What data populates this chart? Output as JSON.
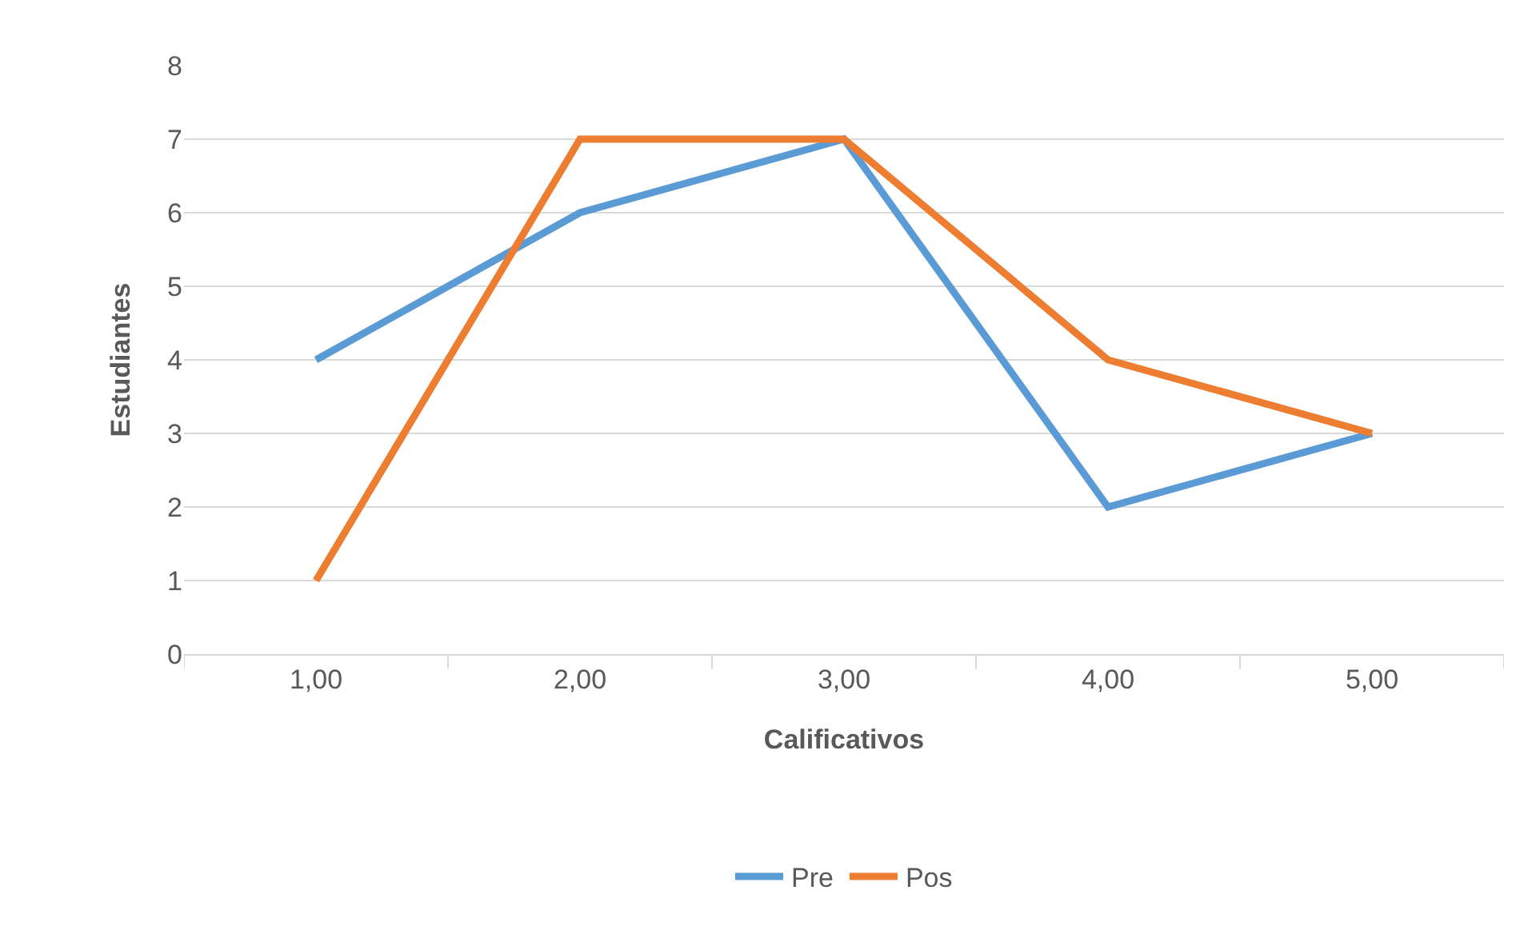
{
  "chart_data": {
    "type": "line",
    "xlabel": "Calificativos",
    "ylabel": "Estudiantes",
    "categories": [
      "1,00",
      "2,00",
      "3,00",
      "4,00",
      "5,00"
    ],
    "series": [
      {
        "name": "Pre",
        "color": "#5b9bd5",
        "values": [
          4,
          6,
          7,
          2,
          3
        ]
      },
      {
        "name": "Pos",
        "color": "#ed7d31",
        "values": [
          1,
          7,
          7,
          4,
          3
        ]
      }
    ],
    "ylim": [
      0,
      8
    ],
    "yticks": [
      0,
      1,
      2,
      3,
      4,
      5,
      6,
      7,
      8
    ],
    "grid": "y",
    "legend": "bottom",
    "marker": "none",
    "line_style": "solid"
  }
}
